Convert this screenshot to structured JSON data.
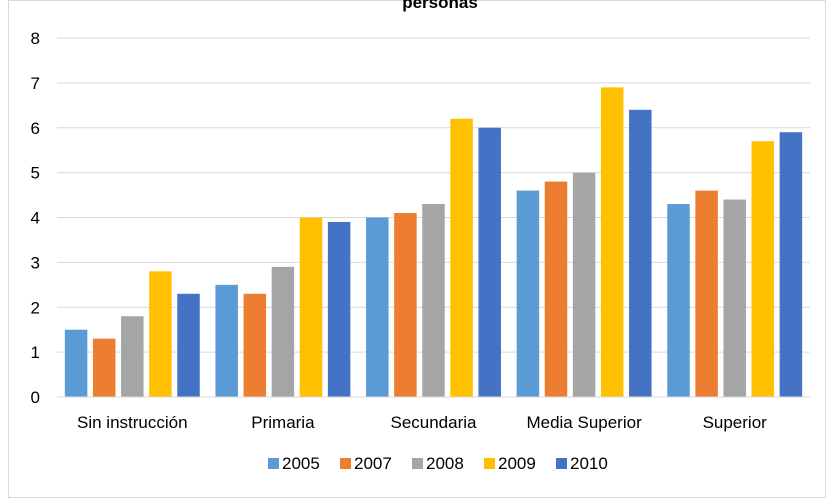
{
  "chart_data": {
    "type": "bar",
    "title": "personas",
    "xlabel": "",
    "ylabel": "",
    "ylim": [
      0,
      8
    ],
    "yticks": [
      0,
      1,
      2,
      3,
      4,
      5,
      6,
      7,
      8
    ],
    "grid": true,
    "legend_position": "bottom",
    "categories": [
      "Sin instrucción",
      "Primaria",
      "Secundaria",
      "Media Superior",
      "Superior"
    ],
    "series": [
      {
        "name": "2005",
        "color": "#5b9bd5",
        "values": [
          1.5,
          2.5,
          4.0,
          4.6,
          4.3
        ]
      },
      {
        "name": "2007",
        "color": "#ed7d31",
        "values": [
          1.3,
          2.3,
          4.1,
          4.8,
          4.6
        ]
      },
      {
        "name": "2008",
        "color": "#a5a5a5",
        "values": [
          1.8,
          2.9,
          4.3,
          5.0,
          4.4
        ]
      },
      {
        "name": "2009",
        "color": "#ffc000",
        "values": [
          2.8,
          4.0,
          6.2,
          6.9,
          5.7
        ]
      },
      {
        "name": "2010",
        "color": "#4472c4",
        "values": [
          2.3,
          3.9,
          6.0,
          6.4,
          5.9
        ]
      }
    ]
  }
}
